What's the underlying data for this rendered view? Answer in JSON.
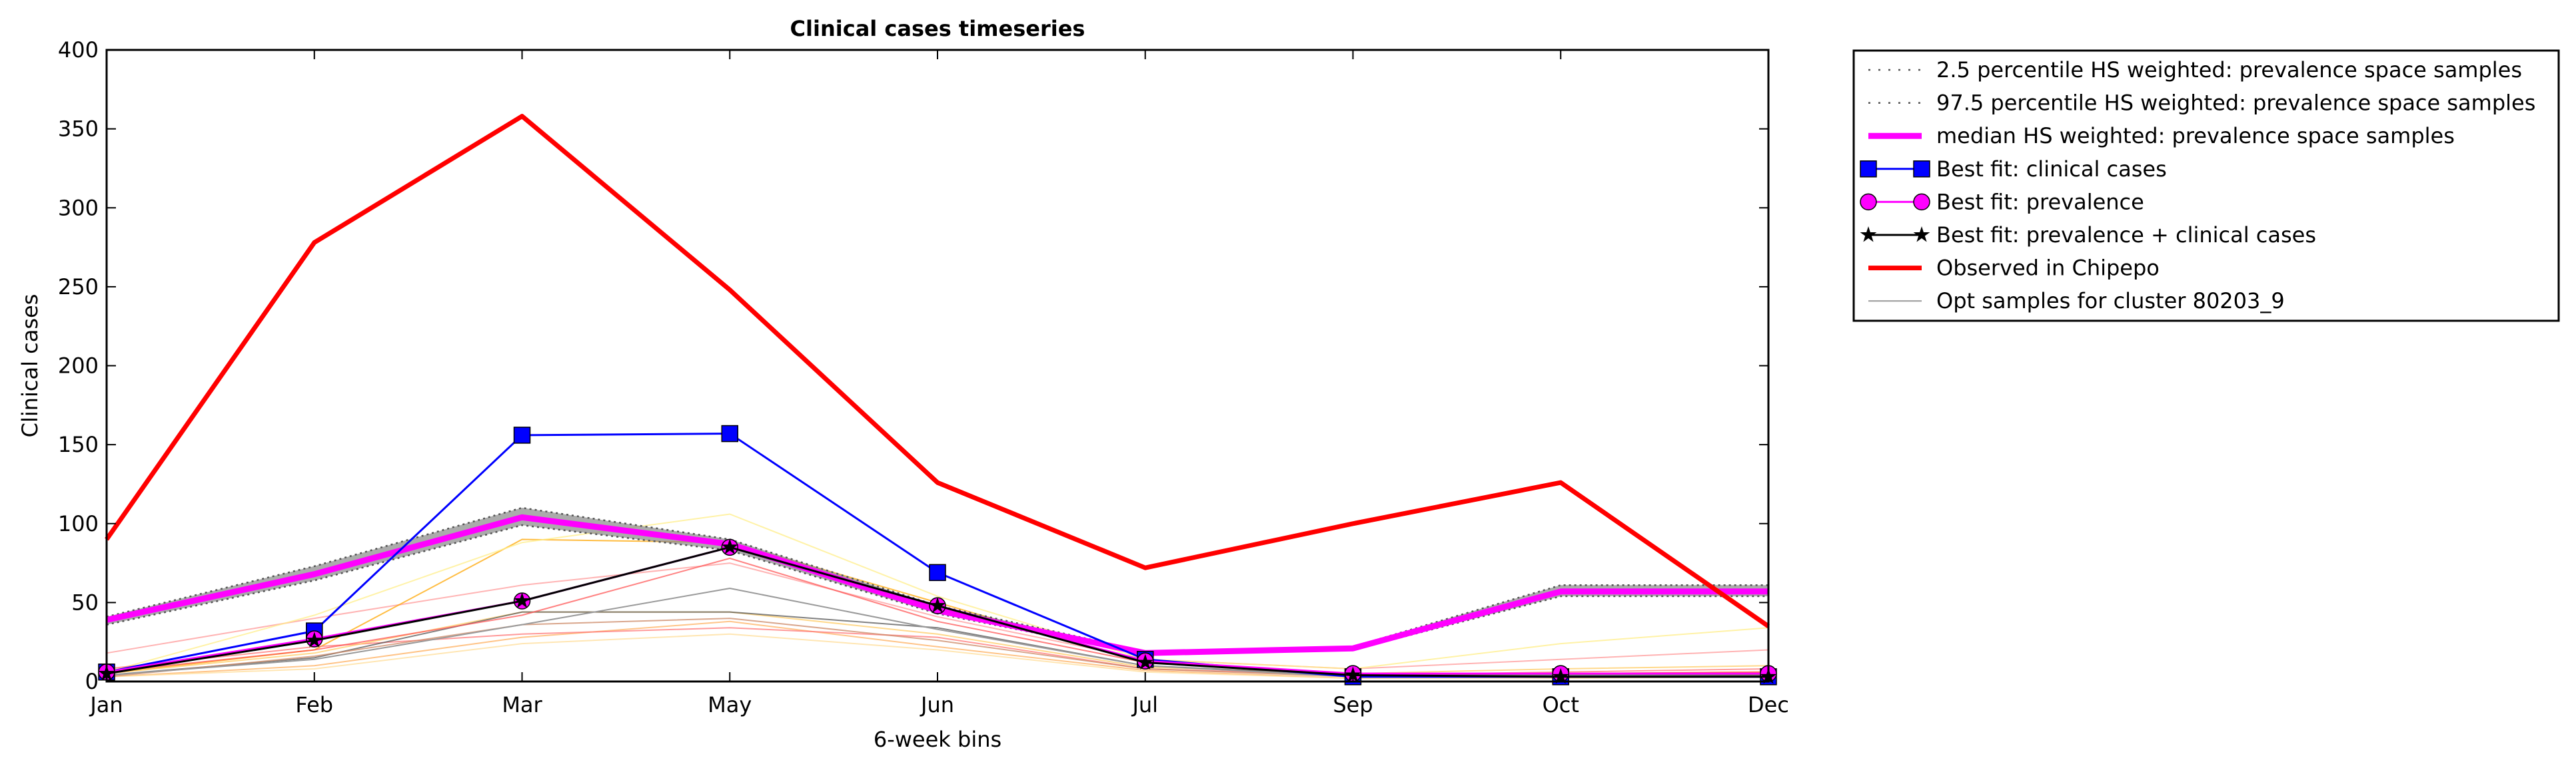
{
  "chart_data": {
    "type": "line",
    "title": "Clinical cases timeseries",
    "xlabel": "6-week bins",
    "ylabel": "Clinical cases",
    "categories": [
      "Jan",
      "Feb",
      "Mar",
      "May",
      "Jun",
      "Jul",
      "Sep",
      "Oct",
      "Dec"
    ],
    "ylim": [
      0,
      400
    ],
    "yticks": [
      0,
      50,
      100,
      150,
      200,
      250,
      300,
      350,
      400
    ],
    "grid": false,
    "legend_position": "outside-right",
    "series": [
      {
        "name": "2.5 percentile HS weighted: prevalence space samples",
        "color": "#555555",
        "style": "dotted",
        "values": [
          36,
          64,
          99,
          83,
          43,
          17,
          20,
          54,
          54
        ]
      },
      {
        "name": "97.5 percentile HS weighted: prevalence space samples",
        "color": "#555555",
        "style": "dotted",
        "values": [
          41,
          73,
          110,
          90,
          48,
          19,
          22,
          61,
          61
        ]
      },
      {
        "name": "median HS weighted: prevalence space samples",
        "color": "#ff00ff",
        "style": "thick",
        "values": [
          39,
          68,
          104,
          87,
          45,
          18,
          21,
          57,
          57
        ]
      },
      {
        "name": "Best fit: clinical cases",
        "color": "#0000ff",
        "marker": "square",
        "values": [
          6,
          32,
          156,
          157,
          69,
          14,
          3,
          3,
          3
        ]
      },
      {
        "name": "Best fit: prevalence",
        "color": "#ff00ff",
        "marker": "circle",
        "values": [
          6,
          27,
          51,
          85,
          48,
          13,
          5,
          5,
          5
        ]
      },
      {
        "name": "Best fit: prevalence + clinical cases",
        "color": "#000000",
        "marker": "star",
        "values": [
          5,
          26,
          51,
          85,
          48,
          12,
          4,
          3,
          3
        ]
      },
      {
        "name": "Observed in Chipepo",
        "color": "#ff0000",
        "style": "thick",
        "values": [
          90,
          278,
          358,
          248,
          126,
          72,
          100,
          126,
          35
        ]
      },
      {
        "name": "Opt samples for cluster 80203_9",
        "color": "#999999",
        "style": "thin",
        "values": [
          4,
          14,
          36,
          59,
          33,
          10,
          3,
          3,
          3
        ]
      }
    ],
    "opt_samples_extra": [
      {
        "color": "#ff9999",
        "values": [
          18,
          40,
          61,
          75,
          41,
          14,
          8,
          14,
          20
        ]
      },
      {
        "color": "#ffa500",
        "values": [
          5,
          20,
          90,
          88,
          50,
          12,
          4,
          5,
          6
        ]
      },
      {
        "color": "#ffee88",
        "values": [
          6,
          42,
          88,
          106,
          54,
          14,
          8,
          24,
          34
        ]
      },
      {
        "color": "#ffb060",
        "values": [
          3,
          10,
          28,
          38,
          22,
          7,
          2,
          3,
          4
        ]
      },
      {
        "color": "#ff7777",
        "values": [
          8,
          22,
          30,
          34,
          28,
          8,
          4,
          6,
          8
        ]
      },
      {
        "color": "#ffcc66",
        "values": [
          5,
          18,
          44,
          44,
          30,
          9,
          5,
          8,
          10
        ]
      },
      {
        "color": "#ffdd99",
        "values": [
          3,
          8,
          24,
          30,
          20,
          6,
          2,
          2,
          3
        ]
      },
      {
        "color": "#555555",
        "values": [
          4,
          15,
          44,
          44,
          34,
          10,
          4,
          4,
          4
        ]
      },
      {
        "color": "#ff5555",
        "values": [
          6,
          20,
          42,
          78,
          38,
          12,
          5,
          5,
          6
        ]
      },
      {
        "color": "#cc8866",
        "values": [
          3,
          16,
          36,
          40,
          26,
          8,
          3,
          3,
          3
        ]
      }
    ]
  }
}
